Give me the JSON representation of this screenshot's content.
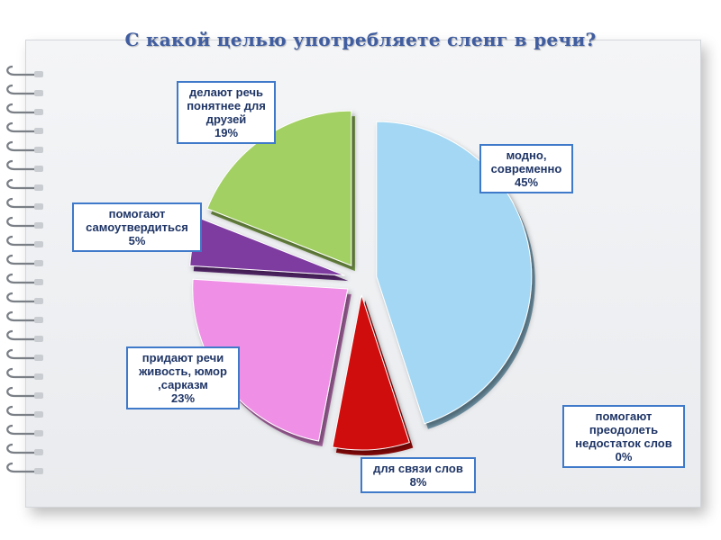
{
  "title": "С какой целью употребляете сленг в речи?",
  "chart_data": {
    "type": "pie",
    "title": "С какой целью употребляете сленг в речи?",
    "slices": [
      {
        "label": "модно, современно",
        "value": 45,
        "pct": "45%",
        "color": "#a3d7f3"
      },
      {
        "label": "для связи слов",
        "value": 8,
        "pct": "8%",
        "color": "#d00c0c"
      },
      {
        "label": "помогают преодолеть недостаток слов",
        "value": 0,
        "pct": "0%",
        "color": "#cccccc"
      },
      {
        "label": "придают речи живость, юмор ,сарказм",
        "value": 23,
        "pct": "23%",
        "color": "#ef90e6"
      },
      {
        "label": "помогают самоутвердиться",
        "value": 5,
        "pct": "5%",
        "color": "#7e3aa0"
      },
      {
        "label": "делают речь понятнее для друзей",
        "value": 19,
        "pct": "19%",
        "color": "#a2d063"
      }
    ]
  },
  "labels": {
    "modno": {
      "l1": "модно,",
      "l2": "современно",
      "pct": "45%"
    },
    "svyaz": {
      "l1": "для связи слов",
      "pct": "8%"
    },
    "nedostatok": {
      "l1": "помогают",
      "l2": "преодолеть",
      "l3": "недостаток слов",
      "pct": "0%"
    },
    "zhivost": {
      "l1": "придают речи",
      "l2": "живость, юмор",
      "l3": ",сарказм",
      "pct": "23%"
    },
    "samout": {
      "l1": "помогают",
      "l2": "самоутвердиться",
      "pct": "5%"
    },
    "drugi": {
      "l1": "делают речь",
      "l2": "понятнее для",
      "l3": "друзей",
      "pct": "19%"
    }
  }
}
